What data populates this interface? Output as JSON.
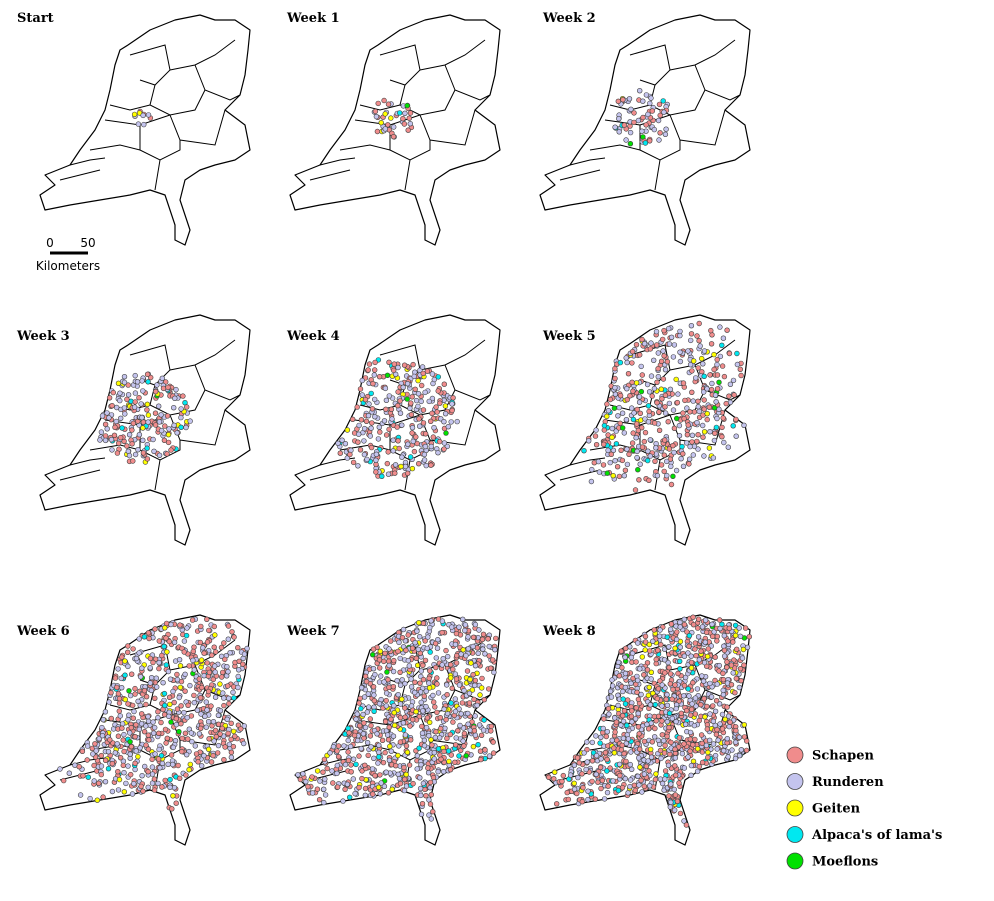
{
  "panels": [
    {
      "title": "Start"
    },
    {
      "title": "Week 1"
    },
    {
      "title": "Week 2"
    },
    {
      "title": "Week 3"
    },
    {
      "title": "Week 4"
    },
    {
      "title": "Week 5"
    },
    {
      "title": "Week 6"
    },
    {
      "title": "Week 7"
    },
    {
      "title": "Week 8"
    }
  ],
  "scale_bar": {
    "labels": [
      "0",
      "50"
    ],
    "unit": "Kilometers"
  },
  "legend": {
    "items": [
      {
        "label": "Schapen",
        "color": "#f08c8c"
      },
      {
        "label": "Runderen",
        "color": "#c4c4ee"
      },
      {
        "label": "Geiten",
        "color": "#ffff00"
      },
      {
        "label": "Alpaca's of lama's",
        "color": "#00e8f0"
      },
      {
        "label": "Moeflons",
        "color": "#00e000"
      }
    ]
  }
}
